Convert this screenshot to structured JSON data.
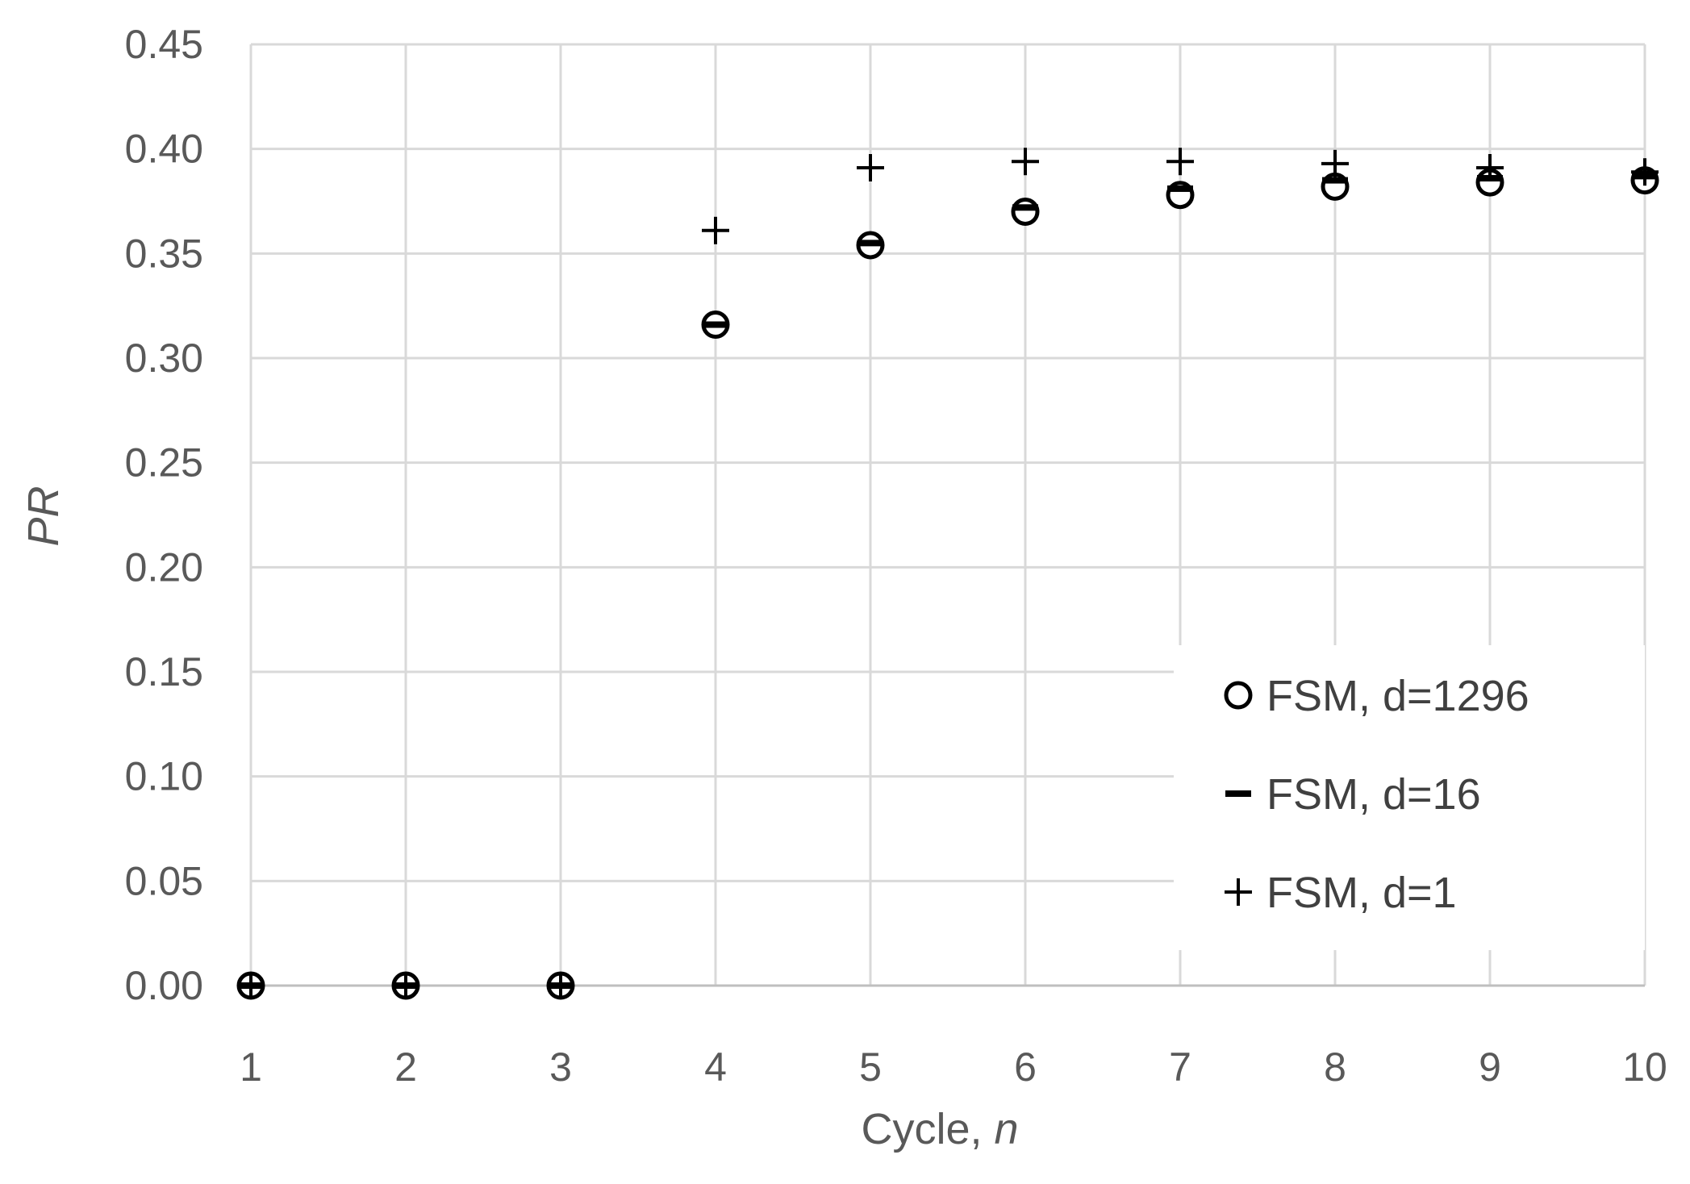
{
  "chart_data": {
    "type": "scatter",
    "title": "",
    "xlabel": "Cycle, ",
    "xlabel_var": "n",
    "ylabel": "PR",
    "xlim": [
      1,
      10
    ],
    "ylim": [
      0,
      0.45
    ],
    "xticks": [
      "1",
      "2",
      "3",
      "4",
      "5",
      "6",
      "7",
      "8",
      "9",
      "10"
    ],
    "yticks": [
      "0.00",
      "0.05",
      "0.10",
      "0.15",
      "0.20",
      "0.25",
      "0.30",
      "0.35",
      "0.40",
      "0.45"
    ],
    "grid": true,
    "legend_position": "bottom-right",
    "series": [
      {
        "name": "FSM, d=1296",
        "marker": "circle",
        "x": [
          1,
          2,
          3,
          4,
          5,
          6,
          7,
          8,
          9,
          10
        ],
        "y": [
          0,
          0,
          0,
          0.316,
          0.354,
          0.37,
          0.378,
          0.382,
          0.384,
          0.385
        ]
      },
      {
        "name": "FSM, d=16",
        "marker": "dash",
        "x": [
          1,
          2,
          3,
          4,
          5,
          6,
          7,
          8,
          9,
          10
        ],
        "y": [
          0,
          0,
          0,
          0.316,
          0.355,
          0.372,
          0.381,
          0.385,
          0.386,
          0.387
        ]
      },
      {
        "name": "FSM, d=1",
        "marker": "plus",
        "x": [
          1,
          2,
          3,
          4,
          5,
          6,
          7,
          8,
          9,
          10
        ],
        "y": [
          0,
          0,
          0,
          0.361,
          0.391,
          0.394,
          0.394,
          0.393,
          0.391,
          0.389
        ]
      }
    ],
    "colors": {
      "marker": "#000000",
      "grid": "#d9d9d9",
      "text": "#595959"
    }
  }
}
